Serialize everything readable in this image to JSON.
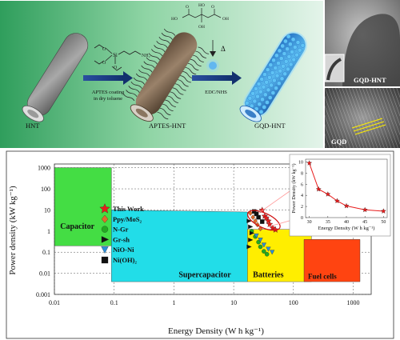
{
  "scheme": {
    "stages": [
      "HNT",
      "APTES-HNT",
      "GQD-HNT"
    ],
    "step1_lines": [
      "APTES coating",
      "in dry toluene"
    ],
    "step2_label": "EDC/NHS",
    "heat_symbol": "Δ",
    "tem_labels": [
      "GQD-HNT",
      "GQD"
    ]
  },
  "chart_data": {
    "type": "scatter",
    "title": "",
    "xlabel": "Energy Density (W h kg⁻¹)",
    "ylabel": "Power density (kW kg⁻¹)",
    "xscale": "log",
    "yscale": "log",
    "xlim": [
      0.01,
      2000
    ],
    "ylim": [
      0.001,
      1500
    ],
    "xticks": [
      "0.01",
      "0.1",
      "1",
      "10",
      "100",
      "1000"
    ],
    "yticks": [
      "0.001",
      "0.01",
      "0.1",
      "1",
      "10",
      "100",
      "1000"
    ],
    "grid": true,
    "regions": [
      {
        "name": "Capacitor",
        "color": "#44dd44"
      },
      {
        "name": "Supercapacitor",
        "color": "#22dde8"
      },
      {
        "name": "Batteries",
        "color": "#ffee00"
      },
      {
        "name": "Fuel cells",
        "color": "#ff4411"
      }
    ],
    "legend": [
      {
        "name": "This Work",
        "marker": "star",
        "color": "#e81c1c"
      },
      {
        "name": "Ppy/MoS₂",
        "marker": "diamond",
        "color": "#e06a2a"
      },
      {
        "name": "N-Gr",
        "marker": "circle",
        "color": "#22aa22"
      },
      {
        "name": "Gr-sh",
        "marker": "triangle-right",
        "color": "#111111"
      },
      {
        "name": "NiO-Ni",
        "marker": "triangle-down",
        "color": "#2d8fd8"
      },
      {
        "name": "Ni(OH)₂",
        "marker": "square",
        "color": "#111111"
      }
    ],
    "series": [
      {
        "name": "This Work",
        "x": [
          30,
          33,
          35,
          38,
          40,
          45,
          50
        ],
        "y": [
          9.8,
          5.1,
          4.2,
          3.0,
          2.1,
          1.4,
          1.15
        ]
      },
      {
        "name": "Ppy/MoS₂",
        "x": [
          19,
          21,
          23,
          25,
          28
        ],
        "y": [
          7.0,
          4.5,
          3.0,
          2.0,
          1.3
        ]
      },
      {
        "name": "N-Gr",
        "x": [
          20,
          23,
          26,
          28,
          32,
          36
        ],
        "y": [
          1.0,
          0.55,
          0.3,
          0.18,
          0.11,
          0.08
        ]
      },
      {
        "name": "Gr-sh",
        "x": [
          18,
          19,
          20,
          19,
          18
        ],
        "y": [
          3.0,
          1.6,
          0.8,
          0.38,
          0.18
        ]
      },
      {
        "name": "NiO-Ni",
        "x": [
          24,
          28,
          32,
          38,
          44
        ],
        "y": [
          0.6,
          0.38,
          0.22,
          0.14,
          0.1
        ]
      },
      {
        "name": "Ni(OH)₂",
        "x": [
          22,
          24,
          26,
          30
        ],
        "y": [
          8.5,
          6.5,
          4.5,
          2.8
        ]
      }
    ],
    "inset": {
      "xlabel": "Energy Density (W h kg⁻¹)",
      "ylabel": "Power Density (kW kg⁻¹)",
      "xlim": [
        29,
        51
      ],
      "ylim": [
        0,
        10.5
      ],
      "xticks": [
        "30",
        "35",
        "40",
        "45",
        "50"
      ],
      "yticks": [
        "0",
        "2",
        "4",
        "6",
        "8",
        "10"
      ],
      "x": [
        30,
        32.5,
        35,
        37.5,
        40,
        45,
        50
      ],
      "y": [
        9.8,
        5.1,
        4.2,
        3.0,
        2.1,
        1.4,
        1.15
      ]
    }
  }
}
